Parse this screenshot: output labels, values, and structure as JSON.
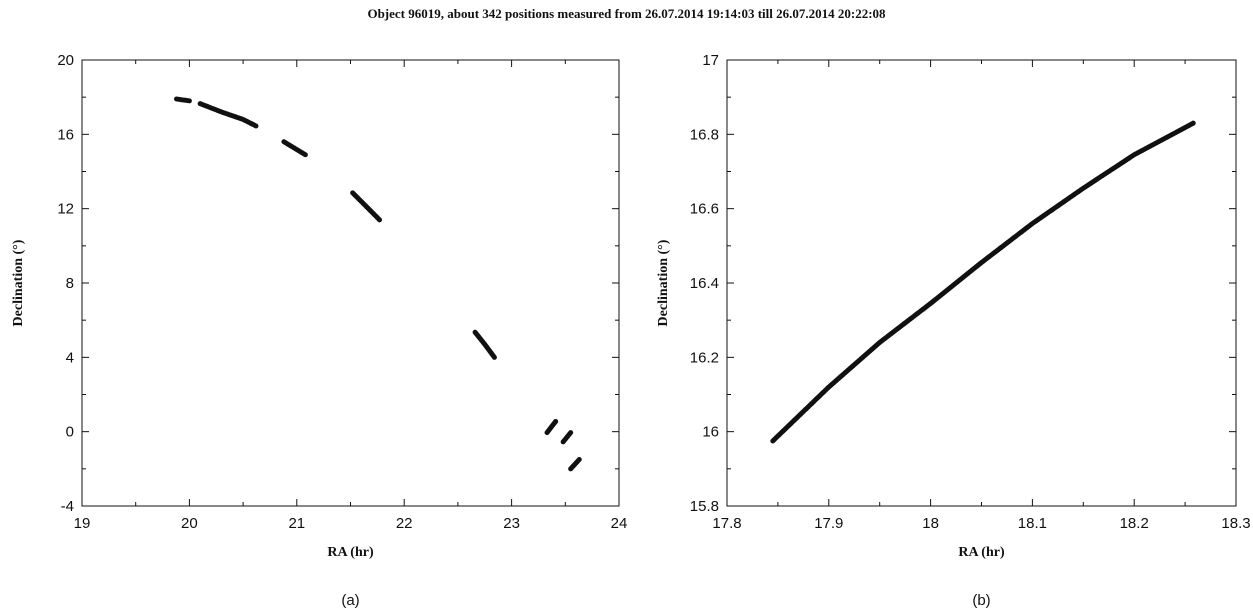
{
  "title": "Object 96019, about 342 positions measured from 26.07.2014 19:14:03 till 26.07.2014 20:22:08",
  "chart_data": [
    {
      "type": "scatter",
      "panel_label": "(a)",
      "xlabel": "RA (hr)",
      "ylabel": "Declination (°)",
      "xlim": [
        19,
        24
      ],
      "ylim": [
        -4,
        20
      ],
      "xticks": [
        19,
        20,
        21,
        22,
        23,
        24
      ],
      "yticks": [
        -4,
        0,
        4,
        8,
        12,
        16,
        20
      ],
      "segments": [
        {
          "x": [
            19.88,
            20.0
          ],
          "y": [
            17.9,
            17.8
          ]
        },
        {
          "x": [
            20.1,
            20.3,
            20.5,
            20.62
          ],
          "y": [
            17.65,
            17.2,
            16.8,
            16.45
          ]
        },
        {
          "x": [
            20.88,
            20.98,
            21.08
          ],
          "y": [
            15.6,
            15.25,
            14.9
          ]
        },
        {
          "x": [
            21.52,
            21.65,
            21.77
          ],
          "y": [
            12.85,
            12.1,
            11.4
          ]
        },
        {
          "x": [
            22.66,
            22.75,
            22.84
          ],
          "y": [
            5.35,
            4.7,
            4.0
          ]
        },
        {
          "x": [
            23.33,
            23.41
          ],
          "y": [
            -0.05,
            0.55
          ]
        },
        {
          "x": [
            23.48,
            23.55
          ],
          "y": [
            -0.55,
            -0.05
          ]
        },
        {
          "x": [
            23.55,
            23.63
          ],
          "y": [
            -2.0,
            -1.5
          ]
        }
      ]
    },
    {
      "type": "scatter",
      "panel_label": "(b)",
      "xlabel": "RA (hr)",
      "ylabel": "Declination (°)",
      "xlim": [
        17.8,
        18.3
      ],
      "ylim": [
        15.8,
        17.0
      ],
      "xticks": [
        17.8,
        17.9,
        18.0,
        18.1,
        18.2,
        18.3
      ],
      "yticks": [
        15.8,
        16.0,
        16.2,
        16.4,
        16.6,
        16.8,
        17.0
      ],
      "xtick_labels": [
        "17.8",
        "17.9",
        "18",
        "18.1",
        "18.2",
        "18.3"
      ],
      "ytick_labels": [
        "15.8",
        "16",
        "16.2",
        "16.4",
        "16.6",
        "16.8",
        "17"
      ],
      "segments": [
        {
          "x": [
            17.845,
            17.9,
            17.95,
            18.0,
            18.05,
            18.1,
            18.15,
            18.2,
            18.258
          ],
          "y": [
            15.975,
            16.12,
            16.24,
            16.345,
            16.455,
            16.56,
            16.655,
            16.745,
            16.83
          ]
        }
      ]
    }
  ]
}
